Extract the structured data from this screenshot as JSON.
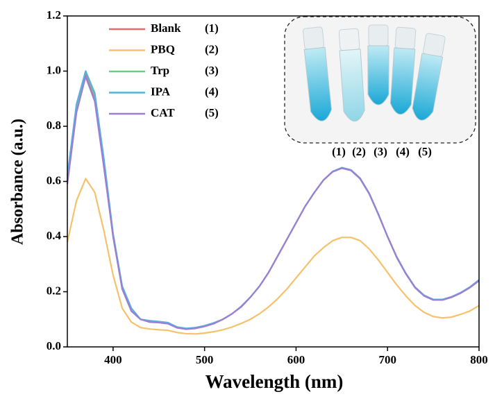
{
  "chart_data": {
    "type": "line",
    "x_label": "Wavelength (nm)",
    "y_label": "Absorbance (a.u.)",
    "xlim": [
      350,
      800
    ],
    "ylim": [
      0,
      1.2
    ],
    "xticks": [
      400,
      500,
      600,
      700,
      800
    ],
    "yticks": [
      {
        "value": 0,
        "label": "0.0"
      },
      0.2,
      0.4,
      0.6,
      0.8,
      {
        "value": 1,
        "label": "1.0"
      },
      1.2
    ],
    "legend_position": "upper left",
    "inset_labels": [
      "(1)",
      "(2)",
      "(3)",
      "(4)",
      "(5)"
    ],
    "x": [
      350,
      360,
      370,
      380,
      390,
      400,
      410,
      420,
      430,
      440,
      450,
      460,
      470,
      480,
      490,
      500,
      510,
      520,
      530,
      540,
      550,
      560,
      570,
      580,
      590,
      600,
      610,
      620,
      630,
      640,
      650,
      660,
      670,
      680,
      690,
      700,
      710,
      720,
      730,
      740,
      750,
      760,
      770,
      780,
      790,
      800
    ],
    "series": [
      {
        "name": "Blank",
        "tag": "(1)",
        "color": "#e8696a",
        "values": [
          0.6,
          0.86,
          0.99,
          0.9,
          0.66,
          0.4,
          0.21,
          0.13,
          0.1,
          0.09,
          0.09,
          0.085,
          0.07,
          0.065,
          0.068,
          0.075,
          0.085,
          0.1,
          0.12,
          0.145,
          0.18,
          0.22,
          0.27,
          0.33,
          0.39,
          0.45,
          0.51,
          0.56,
          0.605,
          0.635,
          0.648,
          0.64,
          0.61,
          0.555,
          0.48,
          0.4,
          0.325,
          0.265,
          0.215,
          0.185,
          0.17,
          0.17,
          0.18,
          0.195,
          0.215,
          0.24
        ]
      },
      {
        "name": "PBQ",
        "tag": "(2)",
        "color": "#f5c26b",
        "values": [
          0.38,
          0.53,
          0.61,
          0.56,
          0.42,
          0.26,
          0.14,
          0.09,
          0.07,
          0.065,
          0.062,
          0.06,
          0.052,
          0.048,
          0.047,
          0.05,
          0.055,
          0.062,
          0.072,
          0.085,
          0.1,
          0.12,
          0.145,
          0.175,
          0.21,
          0.25,
          0.29,
          0.33,
          0.36,
          0.385,
          0.397,
          0.397,
          0.385,
          0.355,
          0.315,
          0.27,
          0.225,
          0.185,
          0.15,
          0.125,
          0.11,
          0.105,
          0.108,
          0.118,
          0.13,
          0.15
        ]
      },
      {
        "name": "Trp",
        "tag": "(3)",
        "color": "#6ccf7f",
        "values": [
          0.61,
          0.87,
          1.0,
          0.91,
          0.67,
          0.41,
          0.21,
          0.13,
          0.1,
          0.09,
          0.09,
          0.086,
          0.07,
          0.066,
          0.069,
          0.076,
          0.086,
          0.1,
          0.12,
          0.146,
          0.18,
          0.22,
          0.27,
          0.33,
          0.39,
          0.45,
          0.51,
          0.56,
          0.605,
          0.636,
          0.649,
          0.641,
          0.61,
          0.556,
          0.48,
          0.4,
          0.326,
          0.266,
          0.216,
          0.186,
          0.171,
          0.171,
          0.181,
          0.196,
          0.216,
          0.241
        ]
      },
      {
        "name": "IPA",
        "tag": "(4)",
        "color": "#5aaee0",
        "values": [
          0.62,
          0.88,
          1.0,
          0.92,
          0.68,
          0.41,
          0.22,
          0.14,
          0.1,
          0.095,
          0.092,
          0.088,
          0.072,
          0.067,
          0.07,
          0.077,
          0.087,
          0.1,
          0.12,
          0.147,
          0.18,
          0.22,
          0.27,
          0.33,
          0.39,
          0.45,
          0.51,
          0.56,
          0.605,
          0.636,
          0.65,
          0.642,
          0.612,
          0.557,
          0.482,
          0.4,
          0.327,
          0.267,
          0.217,
          0.187,
          0.172,
          0.172,
          0.182,
          0.197,
          0.217,
          0.243
        ]
      },
      {
        "name": "CAT",
        "tag": "(5)",
        "color": "#9b7fd4",
        "values": [
          0.59,
          0.85,
          0.98,
          0.89,
          0.65,
          0.4,
          0.21,
          0.13,
          0.1,
          0.09,
          0.088,
          0.084,
          0.069,
          0.064,
          0.067,
          0.074,
          0.084,
          0.1,
          0.12,
          0.145,
          0.18,
          0.22,
          0.27,
          0.33,
          0.39,
          0.45,
          0.51,
          0.56,
          0.605,
          0.635,
          0.648,
          0.64,
          0.61,
          0.555,
          0.48,
          0.4,
          0.325,
          0.265,
          0.215,
          0.185,
          0.17,
          0.17,
          0.18,
          0.195,
          0.215,
          0.24
        ]
      }
    ]
  }
}
